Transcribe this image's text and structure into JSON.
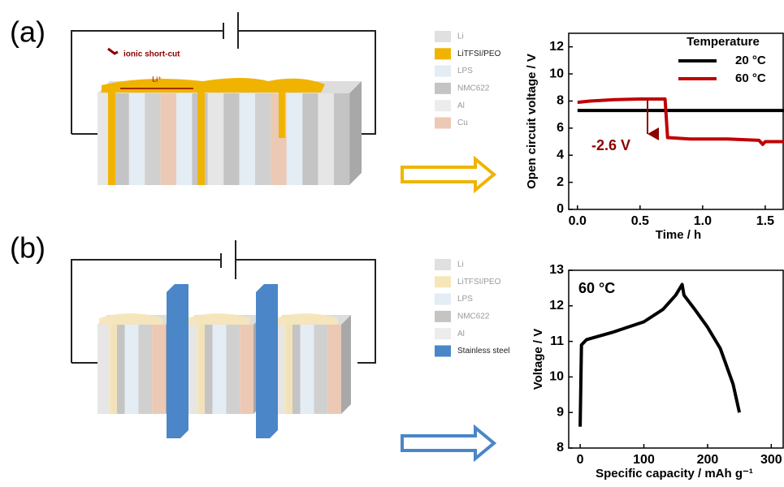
{
  "panel_a": {
    "label": "(a)",
    "short_cut": "ionic short-cut",
    "ion": "Li⁺",
    "legend": [
      {
        "label": "Li",
        "color": "#e0e0e0"
      },
      {
        "label": "LiTFSI/PEO",
        "color": "#f0b400"
      },
      {
        "label": "LPS",
        "color": "#e4ecf4"
      },
      {
        "label": "NMC622",
        "color": "#c4c4c4"
      },
      {
        "label": "Al",
        "color": "#ececec"
      },
      {
        "label": "Cu",
        "color": "#ecc9b4"
      }
    ]
  },
  "panel_b": {
    "label": "(b)",
    "legend": [
      {
        "label": "Li",
        "color": "#e0e0e0"
      },
      {
        "label": "LiTFSI/PEO",
        "color": "#f6e6b8"
      },
      {
        "label": "LPS",
        "color": "#e4ecf4"
      },
      {
        "label": "NMC622",
        "color": "#c4c4c4"
      },
      {
        "label": "Al",
        "color": "#ececec"
      },
      {
        "label": "Stainless steel",
        "color": "#4a86c8"
      }
    ]
  },
  "chart_data": [
    {
      "type": "line",
      "xlabel": "Time / h",
      "ylabel": "Open circuit voltage / V",
      "xlim": [
        -0.07,
        1.65
      ],
      "ylim": [
        0,
        13
      ],
      "xticks": [
        {
          "value": 0,
          "label": "0.0"
        },
        0.5,
        {
          "value": 1,
          "label": "1.0"
        },
        1.5
      ],
      "yticks": [
        0,
        2,
        4,
        6,
        8,
        10,
        12
      ],
      "legend_title": "Temperature",
      "annotation": "-2.6 V",
      "series": [
        {
          "name": "20 °C",
          "color": "#000000",
          "x": [
            0,
            0.5,
            1,
            1.65
          ],
          "values": [
            7.3,
            7.3,
            7.3,
            7.3
          ]
        },
        {
          "name": "60 °C",
          "color": "#c00000",
          "x": [
            0,
            0.1,
            0.3,
            0.5,
            0.7,
            0.72,
            0.9,
            1.2,
            1.45,
            1.48,
            1.5,
            1.65
          ],
          "values": [
            7.9,
            8.0,
            8.1,
            8.15,
            8.15,
            5.3,
            5.2,
            5.2,
            5.1,
            4.8,
            5.0,
            5.0
          ]
        }
      ]
    },
    {
      "type": "line",
      "xlabel": "Specific capacity / mAh g⁻¹",
      "ylabel": "Voltage / V",
      "xlim": [
        -18,
        320
      ],
      "ylim": [
        8,
        13
      ],
      "xticks": [
        0,
        100,
        200,
        300
      ],
      "yticks": [
        8,
        9,
        10,
        11,
        12,
        13
      ],
      "annotation": "60 °C",
      "series": [
        {
          "name": null,
          "color": "#000000",
          "x": [
            0,
            2,
            10,
            50,
            100,
            130,
            150,
            160,
            163,
            180,
            200,
            220,
            240,
            250
          ],
          "values": [
            8.6,
            10.9,
            11.05,
            11.25,
            11.55,
            11.9,
            12.3,
            12.6,
            12.3,
            11.9,
            11.4,
            10.8,
            9.8,
            9.0
          ]
        }
      ]
    }
  ]
}
